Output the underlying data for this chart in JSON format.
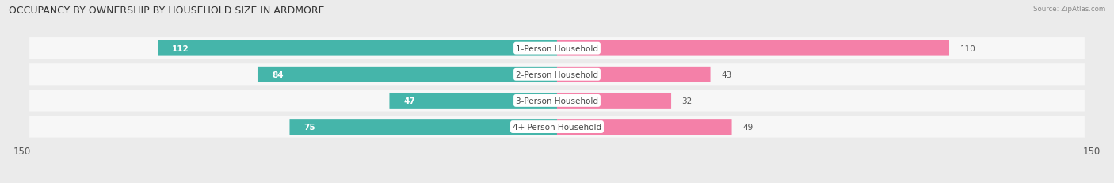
{
  "title": "OCCUPANCY BY OWNERSHIP BY HOUSEHOLD SIZE IN ARDMORE",
  "source": "Source: ZipAtlas.com",
  "categories": [
    "1-Person Household",
    "2-Person Household",
    "3-Person Household",
    "4+ Person Household"
  ],
  "owner_values": [
    112,
    84,
    47,
    75
  ],
  "renter_values": [
    110,
    43,
    32,
    49
  ],
  "owner_color": "#45b5aa",
  "renter_color": "#f480a8",
  "axis_max": 150,
  "background_color": "#ebebeb",
  "row_bg_color": "#f7f7f7",
  "title_fontsize": 9,
  "label_fontsize": 7.5,
  "tick_fontsize": 8.5,
  "value_fontsize": 7.5
}
